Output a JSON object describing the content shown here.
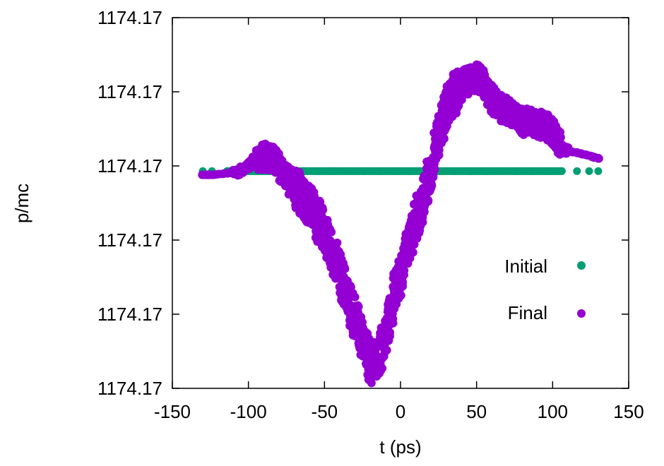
{
  "chart_data": {
    "type": "scatter",
    "xlabel": "t (ps)",
    "ylabel": "p/mc",
    "xlim": [
      -150,
      150
    ],
    "ylim": [
      0,
      5
    ],
    "x_ticks": [
      -150,
      -100,
      -50,
      0,
      50,
      100,
      150
    ],
    "x_tick_labels": [
      "-150",
      "-100",
      "-50",
      "0",
      "50",
      "100",
      "150"
    ],
    "y_ticks": [
      0,
      1,
      2,
      3,
      4,
      5
    ],
    "y_tick_labels": [
      "1174.17",
      "1174.17",
      "1174.17",
      "1174.17",
      "1174.17",
      "1174.17"
    ],
    "legend_position": "right-middle",
    "series": [
      {
        "name": "Initial",
        "color": "#009e73",
        "points": [
          [
            -130,
            2.93
          ],
          [
            -124,
            2.93
          ],
          [
            -114,
            2.93
          ],
          [
            -104,
            2.93
          ],
          [
            -94,
            2.93
          ],
          [
            -84,
            2.93
          ],
          [
            -74,
            2.93
          ],
          [
            -64,
            2.93
          ],
          [
            -54,
            2.93
          ],
          [
            -44,
            2.93
          ],
          [
            -34,
            2.93
          ],
          [
            -24,
            2.93
          ],
          [
            -14,
            2.93
          ],
          [
            -4,
            2.93
          ],
          [
            6,
            2.93
          ],
          [
            16,
            2.93
          ],
          [
            26,
            2.93
          ],
          [
            36,
            2.93
          ],
          [
            46,
            2.93
          ],
          [
            56,
            2.93
          ],
          [
            66,
            2.93
          ],
          [
            76,
            2.93
          ],
          [
            86,
            2.93
          ],
          [
            96,
            2.93
          ],
          [
            106,
            2.93
          ],
          [
            116,
            2.93
          ],
          [
            124,
            2.93
          ],
          [
            130,
            2.93
          ]
        ]
      },
      {
        "name": "Final",
        "color": "#9400d3",
        "points": [
          [
            -130,
            2.88
          ],
          [
            -124,
            2.88
          ],
          [
            -114,
            2.9
          ],
          [
            -107,
            2.92
          ],
          [
            -100,
            3.0
          ],
          [
            -95,
            3.1
          ],
          [
            -90,
            3.12
          ],
          [
            -85,
            3.12
          ],
          [
            -80,
            3.0
          ],
          [
            -75,
            2.85
          ],
          [
            -70,
            2.7
          ],
          [
            -65,
            2.62
          ],
          [
            -60,
            2.5
          ],
          [
            -55,
            2.3
          ],
          [
            -50,
            2.1
          ],
          [
            -45,
            1.85
          ],
          [
            -40,
            1.55
          ],
          [
            -35,
            1.25
          ],
          [
            -30,
            0.95
          ],
          [
            -25,
            0.65
          ],
          [
            -20,
            0.35
          ],
          [
            -15,
            0.35
          ],
          [
            -10,
            0.7
          ],
          [
            -5,
            1.2
          ],
          [
            0,
            1.55
          ],
          [
            5,
            1.95
          ],
          [
            10,
            2.25
          ],
          [
            15,
            2.55
          ],
          [
            20,
            2.95
          ],
          [
            25,
            3.45
          ],
          [
            30,
            3.75
          ],
          [
            35,
            3.95
          ],
          [
            40,
            4.1
          ],
          [
            45,
            4.15
          ],
          [
            50,
            4.2
          ],
          [
            55,
            4.1
          ],
          [
            60,
            3.9
          ],
          [
            65,
            3.8
          ],
          [
            70,
            3.75
          ],
          [
            75,
            3.65
          ],
          [
            80,
            3.6
          ],
          [
            85,
            3.6
          ],
          [
            90,
            3.55
          ],
          [
            95,
            3.55
          ],
          [
            100,
            3.45
          ],
          [
            105,
            3.25
          ],
          [
            110,
            3.2
          ],
          [
            116,
            3.18
          ],
          [
            122,
            3.15
          ],
          [
            130,
            3.1
          ]
        ]
      }
    ]
  }
}
